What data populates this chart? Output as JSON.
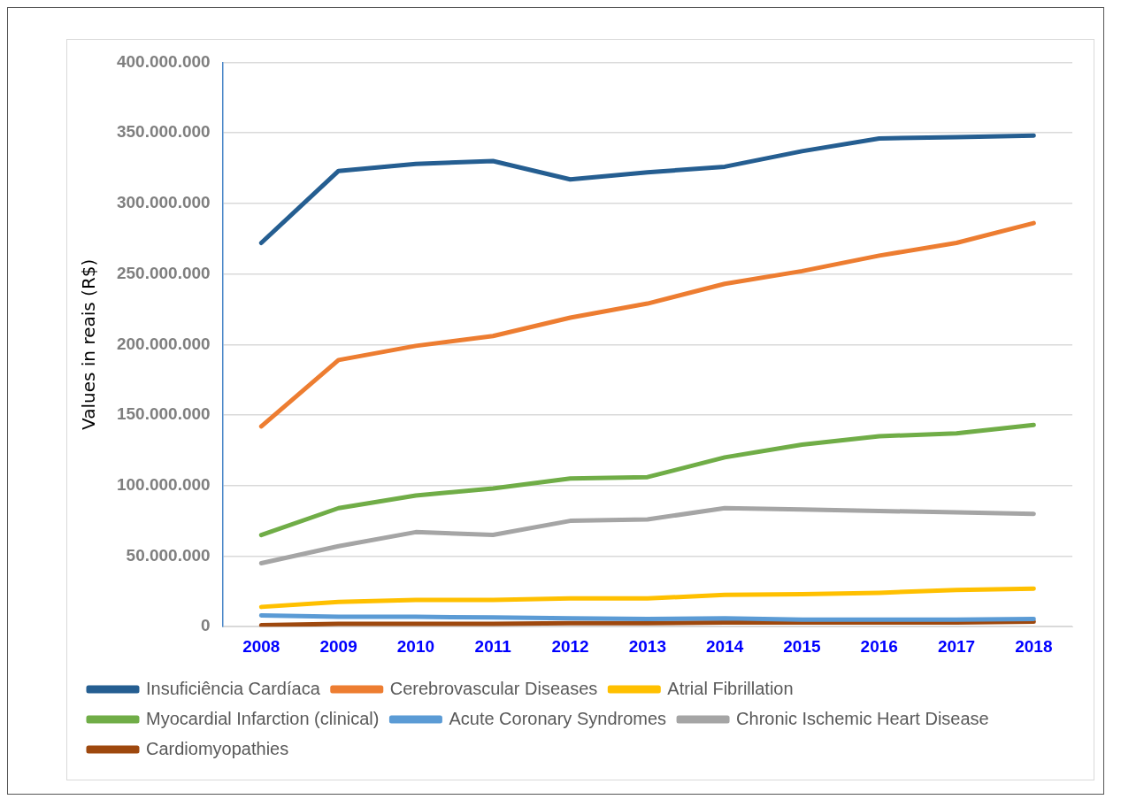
{
  "chart_data": {
    "type": "line",
    "ylabel": "Values in reais (R$)",
    "categories": [
      "2008",
      "2009",
      "2010",
      "2011",
      "2012",
      "2013",
      "2014",
      "2015",
      "2016",
      "2017",
      "2018"
    ],
    "series": [
      {
        "name": "Insuficiência Cardíaca",
        "color": "#255e91",
        "values": [
          272000000,
          323000000,
          328000000,
          330000000,
          317000000,
          322000000,
          326000000,
          337000000,
          346000000,
          347000000,
          348000000
        ]
      },
      {
        "name": "Cerebrovascular Diseases",
        "color": "#ed7d31",
        "values": [
          142000000,
          189000000,
          199000000,
          206000000,
          219000000,
          229000000,
          243000000,
          252000000,
          263000000,
          272000000,
          286000000
        ]
      },
      {
        "name": "Atrial Fibrillation",
        "color": "#ffc000",
        "values": [
          14000000,
          17500000,
          19000000,
          19000000,
          20000000,
          20000000,
          22500000,
          23000000,
          24000000,
          26000000,
          27000000
        ]
      },
      {
        "name": "Myocardial Infarction (clinical)",
        "color": "#70ad47",
        "values": [
          65000000,
          84000000,
          93000000,
          98000000,
          105000000,
          106000000,
          120000000,
          129000000,
          135000000,
          137000000,
          143000000
        ]
      },
      {
        "name": "Acute Coronary Syndromes",
        "color": "#5b9bd5",
        "values": [
          8000000,
          7000000,
          7000000,
          6500000,
          6000000,
          5500000,
          6000000,
          5000000,
          5000000,
          5000000,
          5500000
        ]
      },
      {
        "name": "Chronic Ischemic Heart Disease",
        "color": "#a5a5a5",
        "values": [
          45000000,
          57000000,
          67000000,
          65000000,
          75000000,
          76000000,
          84000000,
          83000000,
          82000000,
          81000000,
          80000000
        ]
      },
      {
        "name": "Cardiomyopathies",
        "color": "#9e480e",
        "values": [
          1000000,
          2000000,
          2000000,
          2000000,
          2500000,
          2500000,
          3000000,
          3000000,
          3000000,
          3000000,
          3500000
        ]
      }
    ],
    "ylim": [
      0,
      400000000
    ],
    "yticks": [
      {
        "value": 0,
        "label": "0"
      },
      {
        "value": 50000000,
        "label": "50.000.000"
      },
      {
        "value": 100000000,
        "label": "100.000.000"
      },
      {
        "value": 150000000,
        "label": "150.000.000"
      },
      {
        "value": 200000000,
        "label": "200.000.000"
      },
      {
        "value": 250000000,
        "label": "250.000.000"
      },
      {
        "value": 300000000,
        "label": "300.000.000"
      },
      {
        "value": 350000000,
        "label": "350.000.000"
      },
      {
        "value": 400000000,
        "label": "400.000.000"
      }
    ],
    "grid": "y",
    "legend": "bottom",
    "marker": "none",
    "line_style": "solid"
  }
}
